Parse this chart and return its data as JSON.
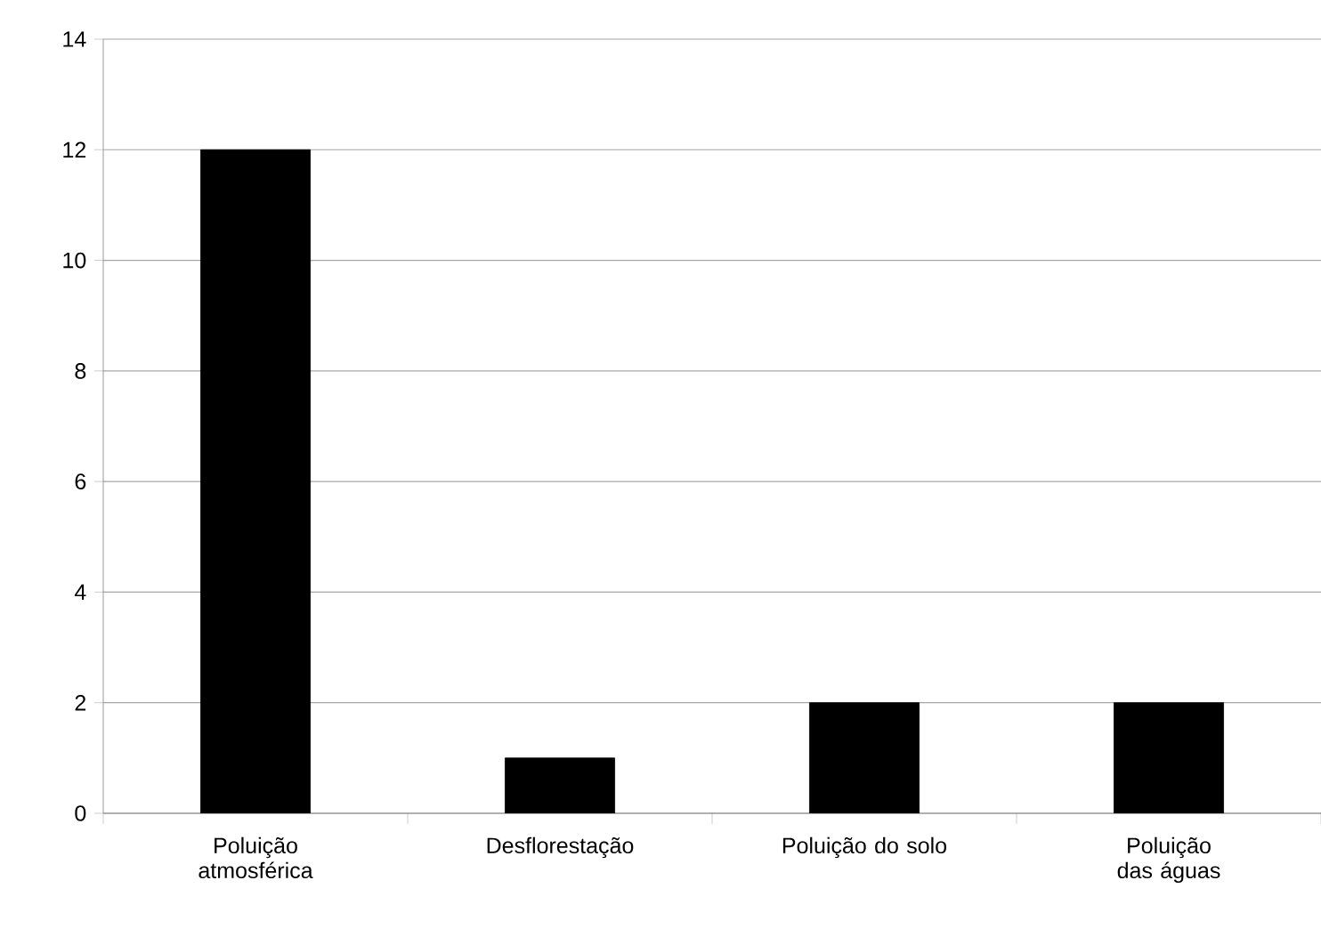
{
  "chart_data": {
    "type": "bar",
    "categories": [
      "Poluição atmosférica",
      "Desflorestação",
      "Poluição do solo",
      "Poluição das águas"
    ],
    "values": [
      12,
      1,
      2,
      2
    ],
    "color": "#000000",
    "ylim": [
      0,
      14
    ],
    "yticks": [
      0,
      2,
      4,
      6,
      8,
      10,
      12,
      14
    ],
    "grid": "y"
  }
}
